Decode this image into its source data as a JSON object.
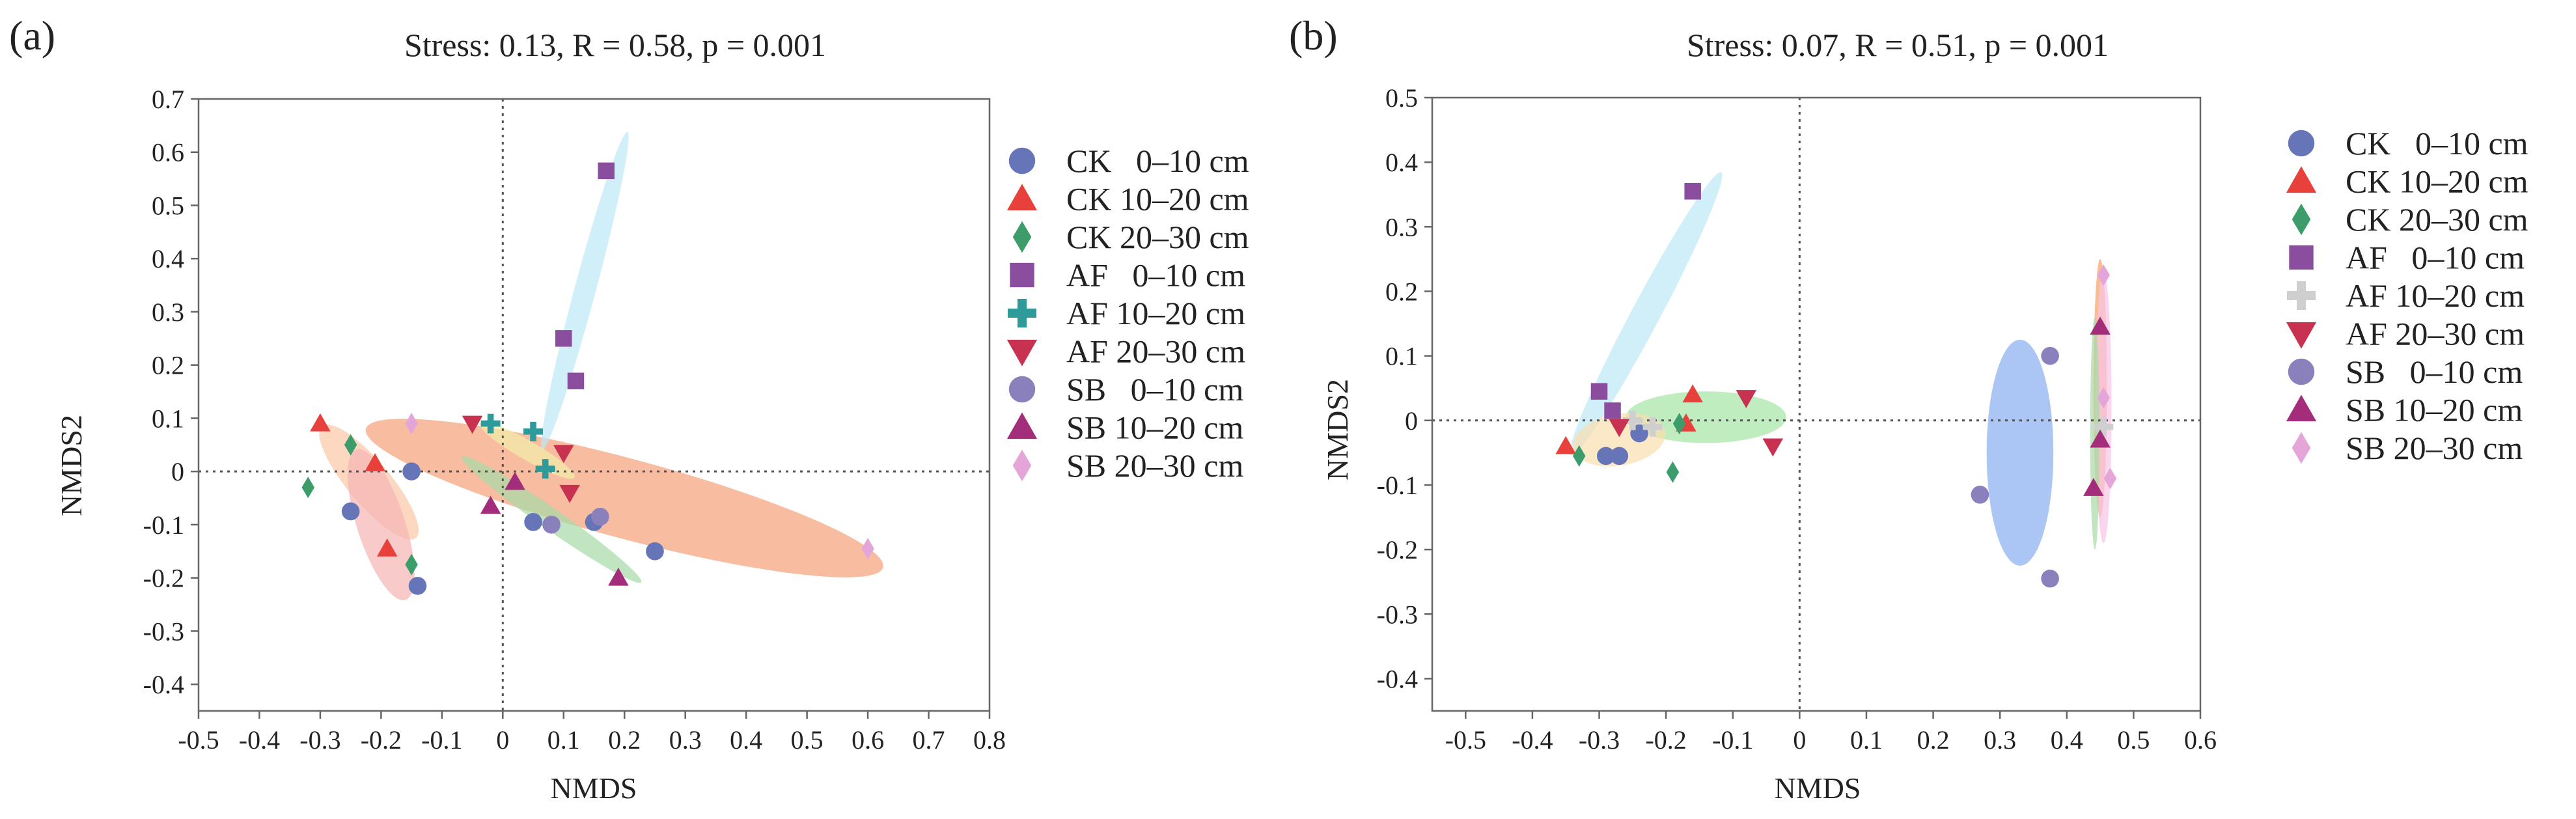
{
  "chart_data": [
    {
      "type": "scatter",
      "panel_label": "(a)",
      "title": "Stress: 0.13, R = 0.58, p = 0.001",
      "xlabel": "NMDS",
      "ylabel": "NMDS2",
      "xlim": [
        -0.5,
        0.8
      ],
      "ylim": [
        -0.45,
        0.7
      ],
      "xticks": [
        -0.5,
        -0.4,
        -0.3,
        -0.2,
        -0.1,
        0,
        0.1,
        0.2,
        0.3,
        0.4,
        0.5,
        0.6,
        0.7,
        0.8
      ],
      "xtick_labels": [
        "-0.5",
        "-0.4",
        "-0.3",
        "-0.2",
        "-0.1",
        "0",
        "0.1",
        "0.2",
        "0.3",
        "0.4",
        "0.5",
        "0.6",
        "0.7",
        "0.8"
      ],
      "yticks": [
        0.7,
        0.6,
        0.5,
        0.4,
        0.3,
        0.2,
        0.1,
        0,
        -0.1,
        -0.2,
        -0.3,
        -0.4
      ],
      "ytick_labels": [
        "0.7",
        "0.6",
        "0.5",
        "0.4",
        "0.3",
        "0.2",
        "0.1",
        "0",
        "-0.1",
        "-0.2",
        "-0.3",
        "-0.4"
      ],
      "reference_lines": {
        "x": 0,
        "y": 0
      },
      "legend_position": "right",
      "series": [
        {
          "name": "CK   0–10 cm",
          "marker": "circle",
          "color": "#6674b8",
          "points": [
            [
              -0.25,
              -0.075
            ],
            [
              -0.15,
              0.0
            ],
            [
              -0.14,
              -0.215
            ],
            [
              0.05,
              -0.095
            ],
            [
              0.15,
              -0.095
            ],
            [
              0.25,
              -0.15
            ]
          ]
        },
        {
          "name": "CK 10–20 cm",
          "marker": "triangle-up",
          "color": "#e8413c",
          "points": [
            [
              -0.3,
              0.09
            ],
            [
              -0.21,
              0.015
            ],
            [
              -0.19,
              -0.145
            ]
          ]
        },
        {
          "name": "CK 20–30 cm",
          "marker": "diamond",
          "color": "#3c9c6a",
          "points": [
            [
              -0.32,
              -0.03
            ],
            [
              -0.25,
              0.05
            ],
            [
              -0.15,
              -0.175
            ]
          ]
        },
        {
          "name": "AF   0–10 cm",
          "marker": "square",
          "color": "#8b4e9e",
          "points": [
            [
              0.17,
              0.565
            ],
            [
              0.1,
              0.25
            ],
            [
              0.12,
              0.17
            ]
          ]
        },
        {
          "name": "AF 10–20 cm",
          "marker": "plus",
          "color": "#2f9a9a",
          "points": [
            [
              -0.02,
              0.09
            ],
            [
              0.05,
              0.075
            ],
            [
              0.07,
              0.005
            ]
          ]
        },
        {
          "name": "AF 20–30 cm",
          "marker": "triangle-down",
          "color": "#c8314f",
          "points": [
            [
              -0.05,
              0.09
            ],
            [
              0.1,
              0.035
            ],
            [
              0.11,
              -0.04
            ]
          ]
        },
        {
          "name": "SB   0–10 cm",
          "marker": "circle",
          "color": "#8a80bb",
          "points": [
            [
              0.08,
              -0.1
            ],
            [
              0.16,
              -0.085
            ]
          ]
        },
        {
          "name": "SB 10–20 cm",
          "marker": "triangle-up",
          "color": "#a32d7a",
          "points": [
            [
              -0.02,
              -0.065
            ],
            [
              0.02,
              -0.02
            ],
            [
              0.19,
              -0.2
            ]
          ]
        },
        {
          "name": "SB 20–30 cm",
          "marker": "diamond",
          "color": "#e4a6d9",
          "points": [
            [
              -0.15,
              0.09
            ],
            [
              0.6,
              -0.145
            ]
          ]
        }
      ],
      "ellipses": [
        {
          "color": "#f5a27b",
          "center": [
            0.2,
            -0.05
          ],
          "rx": 0.44,
          "ry": 0.075,
          "angle_deg": -15
        },
        {
          "color": "#f9c9a6",
          "center": [
            -0.22,
            -0.02
          ],
          "rx": 0.12,
          "ry": 0.04,
          "angle_deg": -50
        },
        {
          "color": "#f6b5b5",
          "center": [
            -0.2,
            -0.1
          ],
          "rx": 0.13,
          "ry": 0.045,
          "angle_deg": -72
        },
        {
          "color": "#bfe9f6",
          "center": [
            0.135,
            0.34
          ],
          "rx": 0.27,
          "ry": 0.02,
          "angle_deg": 75
        },
        {
          "color": "#a9dba8",
          "center": [
            0.08,
            -0.09
          ],
          "rx": 0.18,
          "ry": 0.02,
          "angle_deg": -35
        },
        {
          "color": "#f2efa8",
          "center": [
            0.04,
            0.04
          ],
          "rx": 0.09,
          "ry": 0.018,
          "angle_deg": -30
        }
      ]
    },
    {
      "type": "scatter",
      "panel_label": "(b)",
      "title": "Stress: 0.07, R = 0.51, p = 0.001",
      "xlabel": "NMDS",
      "ylabel": "NMDS2",
      "xlim": [
        -0.55,
        0.6
      ],
      "ylim": [
        -0.45,
        0.5
      ],
      "xticks": [
        -0.5,
        -0.4,
        -0.3,
        -0.2,
        -0.1,
        0,
        0.1,
        0.2,
        0.3,
        0.4,
        0.5,
        0.6
      ],
      "xtick_labels": [
        "-0.5",
        "-0.4",
        "-0.3",
        "-0.2",
        "-0.1",
        "0",
        "0.1",
        "0.2",
        "0.3",
        "0.4",
        "0.5",
        "0.6"
      ],
      "yticks": [
        0.5,
        0.4,
        0.3,
        0.2,
        0.1,
        0,
        -0.1,
        -0.2,
        -0.3,
        -0.4
      ],
      "ytick_labels": [
        "0.5",
        "0.4",
        "0.3",
        "0.2",
        "0.1",
        "0",
        "-0.1",
        "-0.2",
        "-0.3",
        "-0.4"
      ],
      "reference_lines": {
        "x": 0,
        "y": 0
      },
      "legend_position": "right",
      "series": [
        {
          "name": "CK   0–10 cm",
          "marker": "circle",
          "color": "#6674b8",
          "points": [
            [
              -0.29,
              -0.055
            ],
            [
              -0.27,
              -0.055
            ],
            [
              -0.24,
              -0.02
            ]
          ]
        },
        {
          "name": "CK 10–20 cm",
          "marker": "triangle-up",
          "color": "#e8413c",
          "points": [
            [
              -0.35,
              -0.04
            ],
            [
              -0.16,
              0.04
            ],
            [
              -0.17,
              -0.005
            ]
          ]
        },
        {
          "name": "CK 20–30 cm",
          "marker": "diamond",
          "color": "#3c9c6a",
          "points": [
            [
              -0.33,
              -0.055
            ],
            [
              -0.19,
              -0.08
            ],
            [
              -0.18,
              -0.005
            ]
          ]
        },
        {
          "name": "AF   0–10 cm",
          "marker": "square",
          "color": "#8b4e9e",
          "points": [
            [
              -0.16,
              0.355
            ],
            [
              -0.3,
              0.045
            ],
            [
              -0.28,
              0.015
            ]
          ]
        },
        {
          "name": "AF 10–20 cm",
          "marker": "plus",
          "color": "#cfcfcf",
          "points": [
            [
              -0.25,
              0.0
            ],
            [
              -0.22,
              -0.01
            ],
            [
              0.455,
              -0.01
            ]
          ]
        },
        {
          "name": "AF 20–30 cm",
          "marker": "triangle-down",
          "color": "#c8314f",
          "points": [
            [
              -0.08,
              0.035
            ],
            [
              -0.04,
              -0.04
            ],
            [
              -0.27,
              -0.01
            ]
          ]
        },
        {
          "name": "SB   0–10 cm",
          "marker": "circle",
          "color": "#8a80bb",
          "points": [
            [
              0.375,
              0.1
            ],
            [
              0.27,
              -0.115
            ],
            [
              0.375,
              -0.245
            ]
          ]
        },
        {
          "name": "SB 10–20 cm",
          "marker": "triangle-up",
          "color": "#a32d7a",
          "points": [
            [
              0.45,
              0.145
            ],
            [
              0.45,
              -0.03
            ],
            [
              0.44,
              -0.105
            ]
          ]
        },
        {
          "name": "SB 20–30 cm",
          "marker": "diamond",
          "color": "#e4a6d9",
          "points": [
            [
              0.455,
              0.225
            ],
            [
              0.455,
              0.035
            ],
            [
              0.465,
              -0.09
            ]
          ]
        }
      ],
      "ellipses": [
        {
          "color": "#8aaef0",
          "center": [
            0.33,
            -0.05
          ],
          "rx": 0.05,
          "ry": 0.175,
          "angle_deg": 0
        },
        {
          "color": "#bfe9f6",
          "center": [
            -0.23,
            0.165
          ],
          "rx": 0.24,
          "ry": 0.022,
          "angle_deg": 62
        },
        {
          "color": "#a6e6a6",
          "center": [
            -0.14,
            0.005
          ],
          "rx": 0.12,
          "ry": 0.04,
          "angle_deg": 0
        },
        {
          "color": "#f9dfb0",
          "center": [
            -0.27,
            -0.03
          ],
          "rx": 0.07,
          "ry": 0.04,
          "angle_deg": 10
        },
        {
          "color": "#f6a26a",
          "center": [
            0.45,
            0.05
          ],
          "rx": 0.01,
          "ry": 0.2,
          "angle_deg": 0
        },
        {
          "color": "#f7c6e6",
          "center": [
            0.455,
            0.02
          ],
          "rx": 0.012,
          "ry": 0.21,
          "angle_deg": 0
        },
        {
          "color": "#a9dba8",
          "center": [
            0.442,
            -0.02
          ],
          "rx": 0.007,
          "ry": 0.18,
          "angle_deg": 0
        }
      ]
    }
  ]
}
